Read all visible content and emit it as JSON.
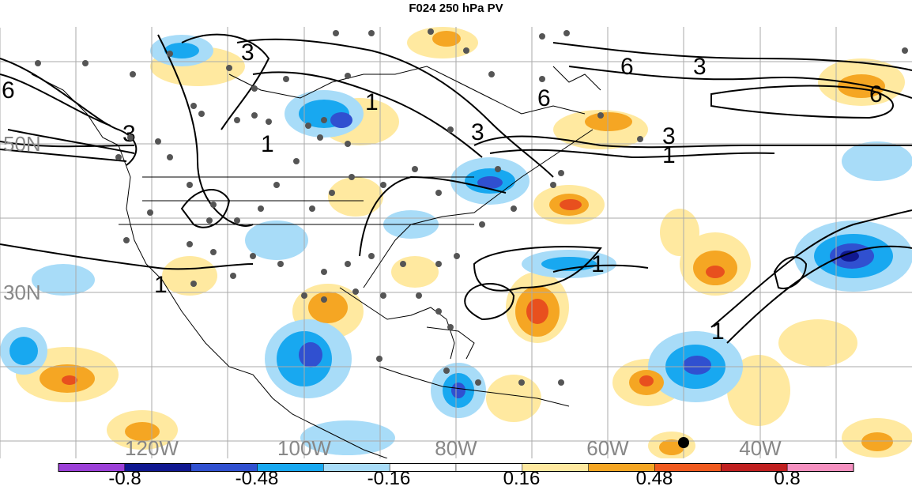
{
  "title": "F024 250 hPa PV",
  "lat_labels": [
    "50N",
    "30N"
  ],
  "lon_labels": [
    "120W",
    "100W",
    "80W",
    "60W",
    "40W"
  ],
  "contour_labels": [
    "6",
    "3",
    "3",
    "1",
    "1",
    "3",
    "6",
    "6",
    "3",
    "3",
    "6",
    "1",
    "1",
    "1",
    "1"
  ],
  "colorbar": {
    "tick_labels": [
      "-0.8",
      "-0.48",
      "-0.16",
      "0.16",
      "0.48",
      "0.8"
    ],
    "colors": [
      "#9c40d8",
      "#101890",
      "#3050d0",
      "#18a8f0",
      "#a8dcf8",
      "#ffffff",
      "#ffffff",
      "#ffe9a0",
      "#f5a623",
      "#f05a1e",
      "#c02020",
      "#f590c0"
    ]
  },
  "colors": {
    "warm_light": "#ffe9a0",
    "warm_mid": "#f5a623",
    "warm_strong": "#e8501e",
    "cool_light": "#a8dcf8",
    "cool_mid": "#18a8f0",
    "cool_strong": "#3050d0",
    "cool_deep": "#101890",
    "grid": "#aaaaaa",
    "station": "#555555"
  }
}
